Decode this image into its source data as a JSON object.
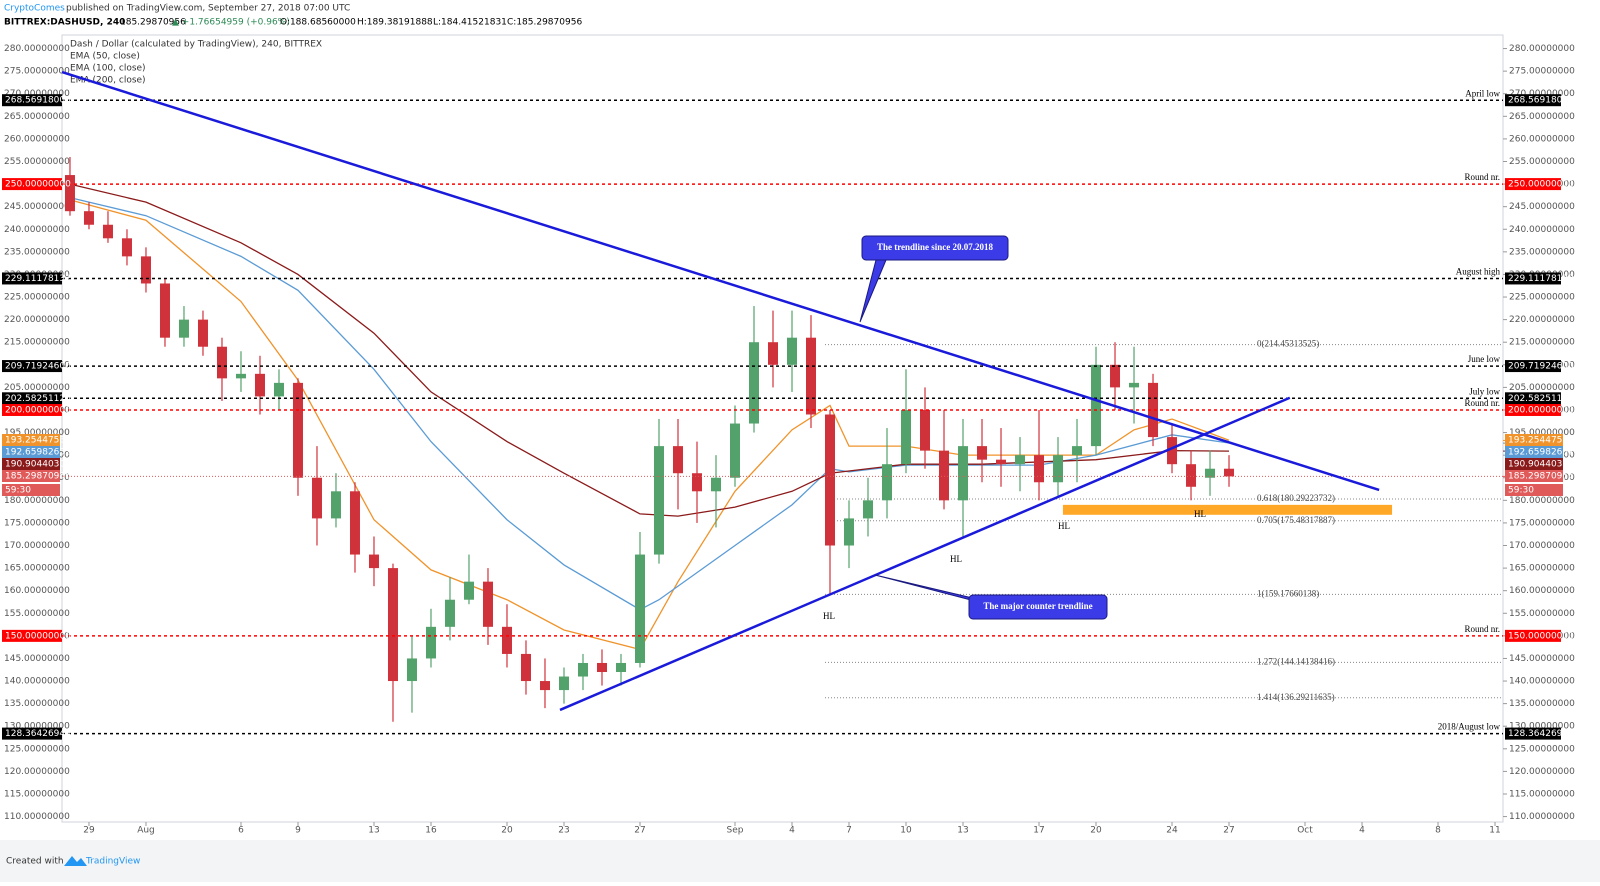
{
  "header": {
    "author": "CryptoComes",
    "published": "published on TradingView.com, September 27, 2018 07:00 UTC",
    "symbol": "BITTREX:DASHUSD, 240",
    "last": "185.29870956",
    "change": "▲ +1.76654959 (+0.96%)",
    "open": "O:188.68560000",
    "high": "H:189.38191888",
    "low": "L:184.41521831",
    "close": "C:185.29870956"
  },
  "footer": {
    "created": "Created with",
    "brand": "TradingView"
  },
  "chart_data": {
    "type": "candlestick",
    "title": "Dash / Dollar (calculated by TradingView), 240, BITTREX",
    "up_color": "#53a26b",
    "down_color": "#d0323c",
    "x": [
      -1,
      0,
      1,
      2,
      3,
      4,
      5,
      6,
      7,
      8,
      9,
      10,
      11,
      12,
      13,
      14,
      15,
      16,
      17,
      18,
      19,
      20,
      21,
      22,
      23,
      24,
      25,
      26,
      27,
      28,
      29,
      30,
      31,
      32,
      33,
      34,
      35,
      36,
      37,
      38,
      39,
      40,
      41,
      42,
      43,
      44,
      45,
      46,
      47,
      48,
      49,
      50,
      51,
      52,
      53,
      54,
      55,
      56,
      57,
      58,
      59,
      60
    ],
    "open": [
      252,
      244,
      241,
      238,
      234,
      228,
      216,
      220,
      214,
      207,
      208,
      203,
      206,
      185,
      176,
      182,
      168,
      165,
      140,
      145,
      152,
      158,
      162,
      152,
      146,
      140,
      138,
      141,
      144,
      142,
      144,
      168,
      192,
      186,
      182,
      185,
      197,
      215,
      210,
      216,
      199,
      170,
      176,
      180,
      188,
      200,
      191,
      180,
      192,
      189,
      188,
      190,
      184,
      190,
      192,
      210,
      205,
      206,
      194,
      188,
      185,
      187
    ],
    "high": [
      256,
      246,
      244,
      240,
      236,
      229,
      223,
      222,
      216,
      213,
      212,
      209,
      207,
      192,
      186,
      184,
      172,
      166,
      150,
      156,
      163,
      168,
      165,
      157,
      149,
      145,
      143,
      146,
      147,
      146,
      173,
      198,
      198,
      193,
      190,
      201,
      223,
      222,
      222,
      221,
      200,
      180,
      185,
      196,
      209,
      205,
      200,
      198,
      198,
      196,
      194,
      200,
      194,
      198,
      214,
      215,
      214,
      208,
      197,
      191,
      191,
      190
    ],
    "low": [
      243,
      240,
      237,
      232,
      226,
      214,
      214,
      212,
      202,
      204,
      199,
      200,
      181,
      170,
      174,
      164,
      161,
      131,
      133,
      143,
      149,
      157,
      148,
      143,
      137,
      134,
      135,
      138,
      139,
      139,
      143,
      166,
      178,
      175,
      174,
      183,
      195,
      205,
      204,
      196,
      159,
      165,
      172,
      176,
      186,
      187,
      178,
      172,
      184,
      183,
      182,
      180,
      181,
      184,
      190,
      200,
      197,
      192,
      186,
      180,
      181,
      183
    ],
    "close": [
      244,
      241,
      238,
      234,
      228,
      216,
      220,
      214,
      207,
      208,
      203,
      206,
      185,
      176,
      182,
      168,
      165,
      140,
      145,
      152,
      158,
      162,
      152,
      146,
      140,
      138,
      141,
      144,
      142,
      144,
      168,
      192,
      186,
      182,
      185,
      197,
      215,
      210,
      216,
      199,
      170,
      176,
      180,
      188,
      200,
      191,
      180,
      192,
      189,
      188,
      190,
      184,
      190,
      192,
      210,
      205,
      206,
      194,
      188,
      183,
      187,
      185.29870956
    ],
    "series": [
      {
        "name": "EMA (50, close)",
        "color": "#f0932b",
        "x": [
          -1,
          3,
          8,
          11,
          15,
          18,
          22,
          25,
          29,
          31,
          34,
          37,
          39,
          40,
          43,
          46,
          53,
          55,
          57,
          60
        ],
        "values": [
          246.5,
          242,
          224,
          206.6,
          175.7,
          164.6,
          158,
          151.3,
          147,
          162,
          182,
          195.6,
          201,
          192,
          192,
          190,
          190,
          195.6,
          198,
          193.3
        ],
        "last_value": 193.25447536,
        "last_label": "193.25447536"
      },
      {
        "name": "EMA (100, close)",
        "color": "#5b9bd5",
        "x": [
          -1,
          3,
          8,
          11,
          15,
          18,
          22,
          25,
          29,
          30,
          34,
          37,
          39,
          40,
          43,
          50,
          53,
          57,
          60
        ],
        "values": [
          247,
          243,
          234,
          226.5,
          209,
          193,
          175.7,
          165.7,
          155.8,
          158,
          170,
          179,
          187,
          186.3,
          187.8,
          187.8,
          190,
          194.5,
          192.7
        ],
        "last_value": 192.65982632,
        "last_label": "192.65982632"
      },
      {
        "name": "EMA (200, close)",
        "color": "#8b1a1a",
        "x": [
          -1,
          3,
          8,
          11,
          15,
          18,
          22,
          25,
          29,
          31,
          34,
          37,
          39,
          43,
          47,
          50,
          53,
          57,
          60
        ],
        "values": [
          250,
          246,
          237,
          230,
          217,
          204,
          193,
          186,
          177,
          176.5,
          178.5,
          182,
          186,
          188,
          188,
          188.5,
          189,
          191,
          190.9
        ],
        "last_value": 190.90440305,
        "last_label": "190.90440305"
      }
    ],
    "price_label": {
      "value": 185.29870956,
      "label": "185.29870956",
      "timer": "59:30",
      "color": "#e05a5a"
    },
    "levels": [
      {
        "value": 268.56918,
        "label": "268.56918000",
        "name": "April low",
        "color": "#000000"
      },
      {
        "value": 250,
        "label": "250.00000000",
        "name": "Round nr.",
        "color": "#ff0000"
      },
      {
        "value": 229.11178132,
        "label": "229.11178132",
        "name": "August high",
        "color": "#000000"
      },
      {
        "value": 209.719246,
        "label": "209.71924600",
        "name": "June low",
        "color": "#000000"
      },
      {
        "value": 202.5825112,
        "label": "202.58251120",
        "name": "July low",
        "color": "#000000"
      },
      {
        "value": 200,
        "label": "200.00000000",
        "name": "Round nr.",
        "color": "#ff0000"
      },
      {
        "value": 150,
        "label": "150.00000000",
        "name": "Round nr.",
        "color": "#ff0000"
      },
      {
        "value": 128.36426944,
        "label": "128.36426944",
        "name": "2018/August low",
        "color": "#000000"
      }
    ],
    "fib": [
      {
        "value": 214.45313525,
        "label": "0(214.45313525)"
      },
      {
        "value": 180.29223732,
        "label": "0.618(180.29223732)"
      },
      {
        "value": 175.48317887,
        "label": "0.705(175.48317887)"
      },
      {
        "value": 159.17660138,
        "label": "1(159.17660138)"
      },
      {
        "value": 144.14138416,
        "label": "1.272(144.14138416)"
      },
      {
        "value": 136.29211635,
        "label": "1.414(136.29211635)"
      }
    ],
    "trendlines": [
      {
        "color": "#1a1adb",
        "x": [
          -1.42,
          67.9
        ],
        "values": [
          274.8,
          182.3
        ]
      },
      {
        "color": "#1a1adb",
        "x": [
          24.79,
          63.2
        ],
        "values": [
          133.6,
          202.7
        ]
      }
    ],
    "zone": {
      "color": "#ffa726",
      "x": [
        51.26,
        68.58
      ],
      "values": [
        176.8,
        179
      ]
    },
    "callouts": [
      "The trendline since 20.07.2018",
      "The major counter trendline"
    ],
    "annotations": [
      "HL",
      "HL",
      "HL",
      "HL"
    ],
    "xlim": [
      -1.42,
      74.42
    ],
    "ylim": [
      108.8,
      283
    ],
    "xticks": [
      {
        "value": 0,
        "label": "29"
      },
      {
        "value": 3,
        "label": "Aug"
      },
      {
        "value": 8,
        "label": "6"
      },
      {
        "value": 11,
        "label": "9"
      },
      {
        "value": 15,
        "label": "13"
      },
      {
        "value": 18,
        "label": "16"
      },
      {
        "value": 22,
        "label": "20"
      },
      {
        "value": 25,
        "label": "23"
      },
      {
        "value": 29,
        "label": "27"
      },
      {
        "value": 34,
        "label": "Sep"
      },
      {
        "value": 37,
        "label": "4"
      },
      {
        "value": 40,
        "label": "7"
      },
      {
        "value": 43,
        "label": "10"
      },
      {
        "value": 46,
        "label": "13"
      },
      {
        "value": 50,
        "label": "17"
      },
      {
        "value": 53,
        "label": "20"
      },
      {
        "value": 57,
        "label": "24"
      },
      {
        "value": 60,
        "label": "27"
      },
      {
        "value": 64,
        "label": "Oct"
      },
      {
        "value": 67,
        "label": "4"
      },
      {
        "value": 71,
        "label": "8"
      },
      {
        "value": 74,
        "label": "11"
      }
    ],
    "yticks": [
      {
        "value": 110,
        "label": "110.00000000"
      },
      {
        "value": 115,
        "label": "115.00000000"
      },
      {
        "value": 120,
        "label": "120.00000000"
      },
      {
        "value": 125,
        "label": "125.00000000"
      },
      {
        "value": 130,
        "label": "130.00000000"
      },
      {
        "value": 135,
        "label": "135.00000000"
      },
      {
        "value": 140,
        "label": "140.00000000"
      },
      {
        "value": 145,
        "label": "145.00000000"
      },
      {
        "value": 150,
        "label": "150.00000000"
      },
      {
        "value": 155,
        "label": "155.00000000"
      },
      {
        "value": 160,
        "label": "160.00000000"
      },
      {
        "value": 165,
        "label": "165.00000000"
      },
      {
        "value": 170,
        "label": "170.00000000"
      },
      {
        "value": 175,
        "label": "175.00000000"
      },
      {
        "value": 180,
        "label": "180.00000000"
      },
      {
        "value": 185,
        "label": "185.00000000"
      },
      {
        "value": 190,
        "label": "190.00000000"
      },
      {
        "value": 195,
        "label": "195.00000000"
      },
      {
        "value": 200,
        "label": "200.00000000"
      },
      {
        "value": 205,
        "label": "205.00000000"
      },
      {
        "value": 210,
        "label": "210.00000000"
      },
      {
        "value": 215,
        "label": "215.00000000"
      },
      {
        "value": 220,
        "label": "220.00000000"
      },
      {
        "value": 225,
        "label": "225.00000000"
      },
      {
        "value": 230,
        "label": "230.00000000"
      },
      {
        "value": 235,
        "label": "235.00000000"
      },
      {
        "value": 240,
        "label": "240.00000000"
      },
      {
        "value": 245,
        "label": "245.00000000"
      },
      {
        "value": 250,
        "label": "250.00000000"
      },
      {
        "value": 255,
        "label": "255.00000000"
      },
      {
        "value": 260,
        "label": "260.00000000"
      },
      {
        "value": 265,
        "label": "265.00000000"
      },
      {
        "value": 270,
        "label": "270.00000000"
      },
      {
        "value": 275,
        "label": "275.00000000"
      },
      {
        "value": 280,
        "label": "280.00000000"
      }
    ]
  }
}
